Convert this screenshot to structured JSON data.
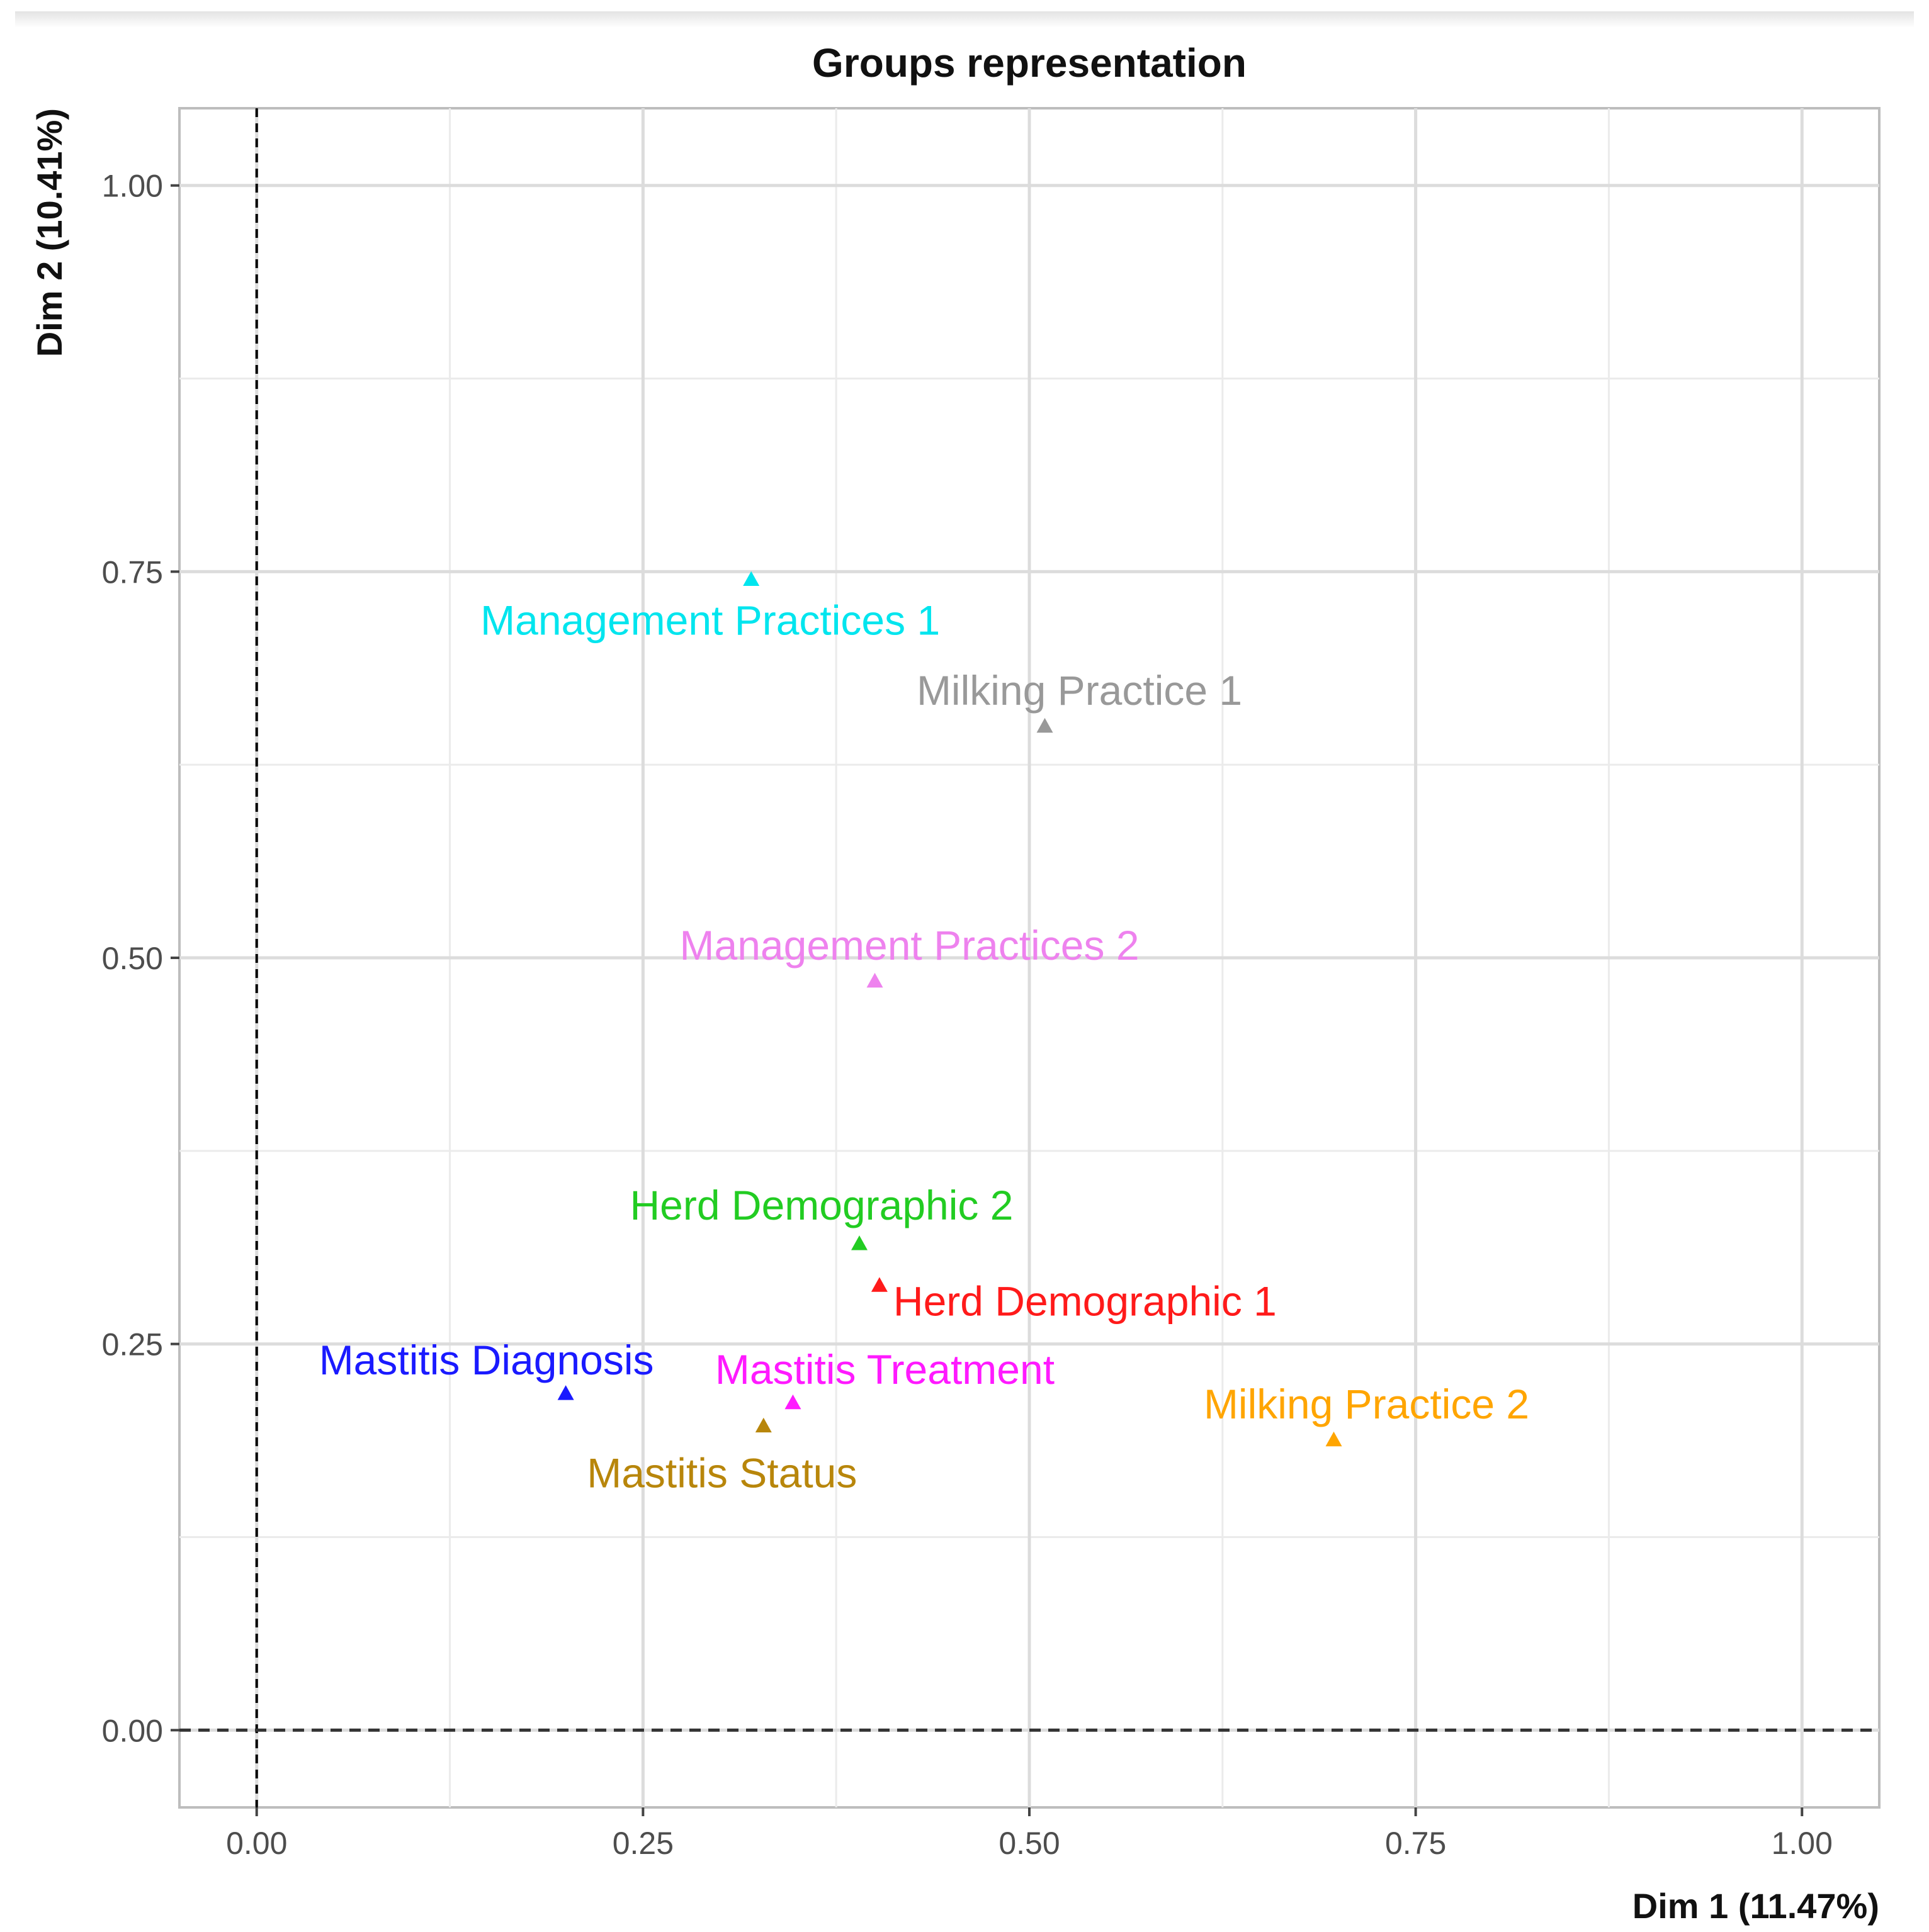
{
  "chart_data": {
    "type": "scatter",
    "title": "Groups representation",
    "xlabel": "Dim 1 (11.47%)",
    "ylabel": "Dim 2 (10.41%)",
    "xlim": [
      -0.05,
      1.05
    ],
    "ylim": [
      -0.05,
      1.05
    ],
    "x_ticks": [
      0.0,
      0.25,
      0.5,
      0.75,
      1.0
    ],
    "x_tick_labels": [
      "0.00",
      "0.25",
      "0.50",
      "0.75",
      "1.00"
    ],
    "y_ticks": [
      0.0,
      0.25,
      0.5,
      0.75,
      1.0
    ],
    "y_tick_labels": [
      "0.00",
      "0.25",
      "0.50",
      "0.75",
      "1.00"
    ],
    "grid": true,
    "reference_lines": {
      "x": 0,
      "y": 0,
      "style": "dashed"
    },
    "marker": "triangle",
    "points": [
      {
        "label": "Management Practices 1",
        "x": 0.32,
        "y": 0.745,
        "color": "#00e5ee",
        "label_pos": "below"
      },
      {
        "label": "Milking Practice 1",
        "x": 0.51,
        "y": 0.65,
        "color": "#999999",
        "label_pos": "above-right"
      },
      {
        "label": "Management Practices 2",
        "x": 0.4,
        "y": 0.485,
        "color": "#ee82ee",
        "label_pos": "above"
      },
      {
        "label": "Herd Demographic 2",
        "x": 0.39,
        "y": 0.315,
        "color": "#22cc22",
        "label_pos": "above-left"
      },
      {
        "label": "Herd Demographic 1",
        "x": 0.403,
        "y": 0.288,
        "color": "#ff1a1a",
        "label_pos": "below-right"
      },
      {
        "label": "Mastitis Diagnosis",
        "x": 0.2,
        "y": 0.218,
        "color": "#1a1aff",
        "label_pos": "above-left"
      },
      {
        "label": "Mastitis Treatment",
        "x": 0.347,
        "y": 0.212,
        "color": "#ff1aff",
        "label_pos": "above-right"
      },
      {
        "label": "Milking Practice 2",
        "x": 0.697,
        "y": 0.188,
        "color": "#ffa500",
        "label_pos": "above"
      },
      {
        "label": "Mastitis Status",
        "x": 0.328,
        "y": 0.197,
        "color": "#b8860b",
        "label_pos": "below-left"
      }
    ]
  }
}
